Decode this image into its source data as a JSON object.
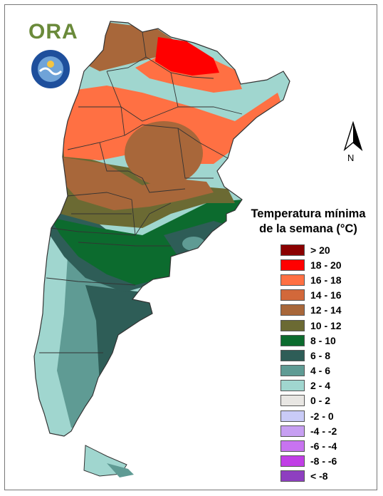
{
  "map": {
    "logo_text": "ORA",
    "seal_icon": "national-weather-service-seal-icon",
    "north_label": "N"
  },
  "legend": {
    "title_line1": "Temperatura mínima",
    "title_line2": "de la semana (°C)",
    "items": [
      {
        "label": "> 20",
        "color": "#8b0000"
      },
      {
        "label": "18 - 20",
        "color": "#ff0000"
      },
      {
        "label": "16 - 18",
        "color": "#ff7043"
      },
      {
        "label": "14 - 16",
        "color": "#d2683a"
      },
      {
        "label": "12 - 14",
        "color": "#a8673a"
      },
      {
        "label": "10 - 12",
        "color": "#6b6a33"
      },
      {
        "label": "8 - 10",
        "color": "#0c6b2e"
      },
      {
        "label": "6 - 8",
        "color": "#2e5d57"
      },
      {
        "label": "4 - 6",
        "color": "#5f9b94"
      },
      {
        "label": "2 - 4",
        "color": "#a0d6cf"
      },
      {
        "label": "0 - 2",
        "color": "#e8e6e3"
      },
      {
        "label": "-2 - 0",
        "color": "#c9cbf7"
      },
      {
        "label": "-4 - -2",
        "color": "#c79ff2"
      },
      {
        "label": "-6 - -4",
        "color": "#c873f0"
      },
      {
        "label": "-8 - -6",
        "color": "#c13ee6"
      },
      {
        "label": "< -8",
        "color": "#8e3fc0"
      }
    ]
  }
}
